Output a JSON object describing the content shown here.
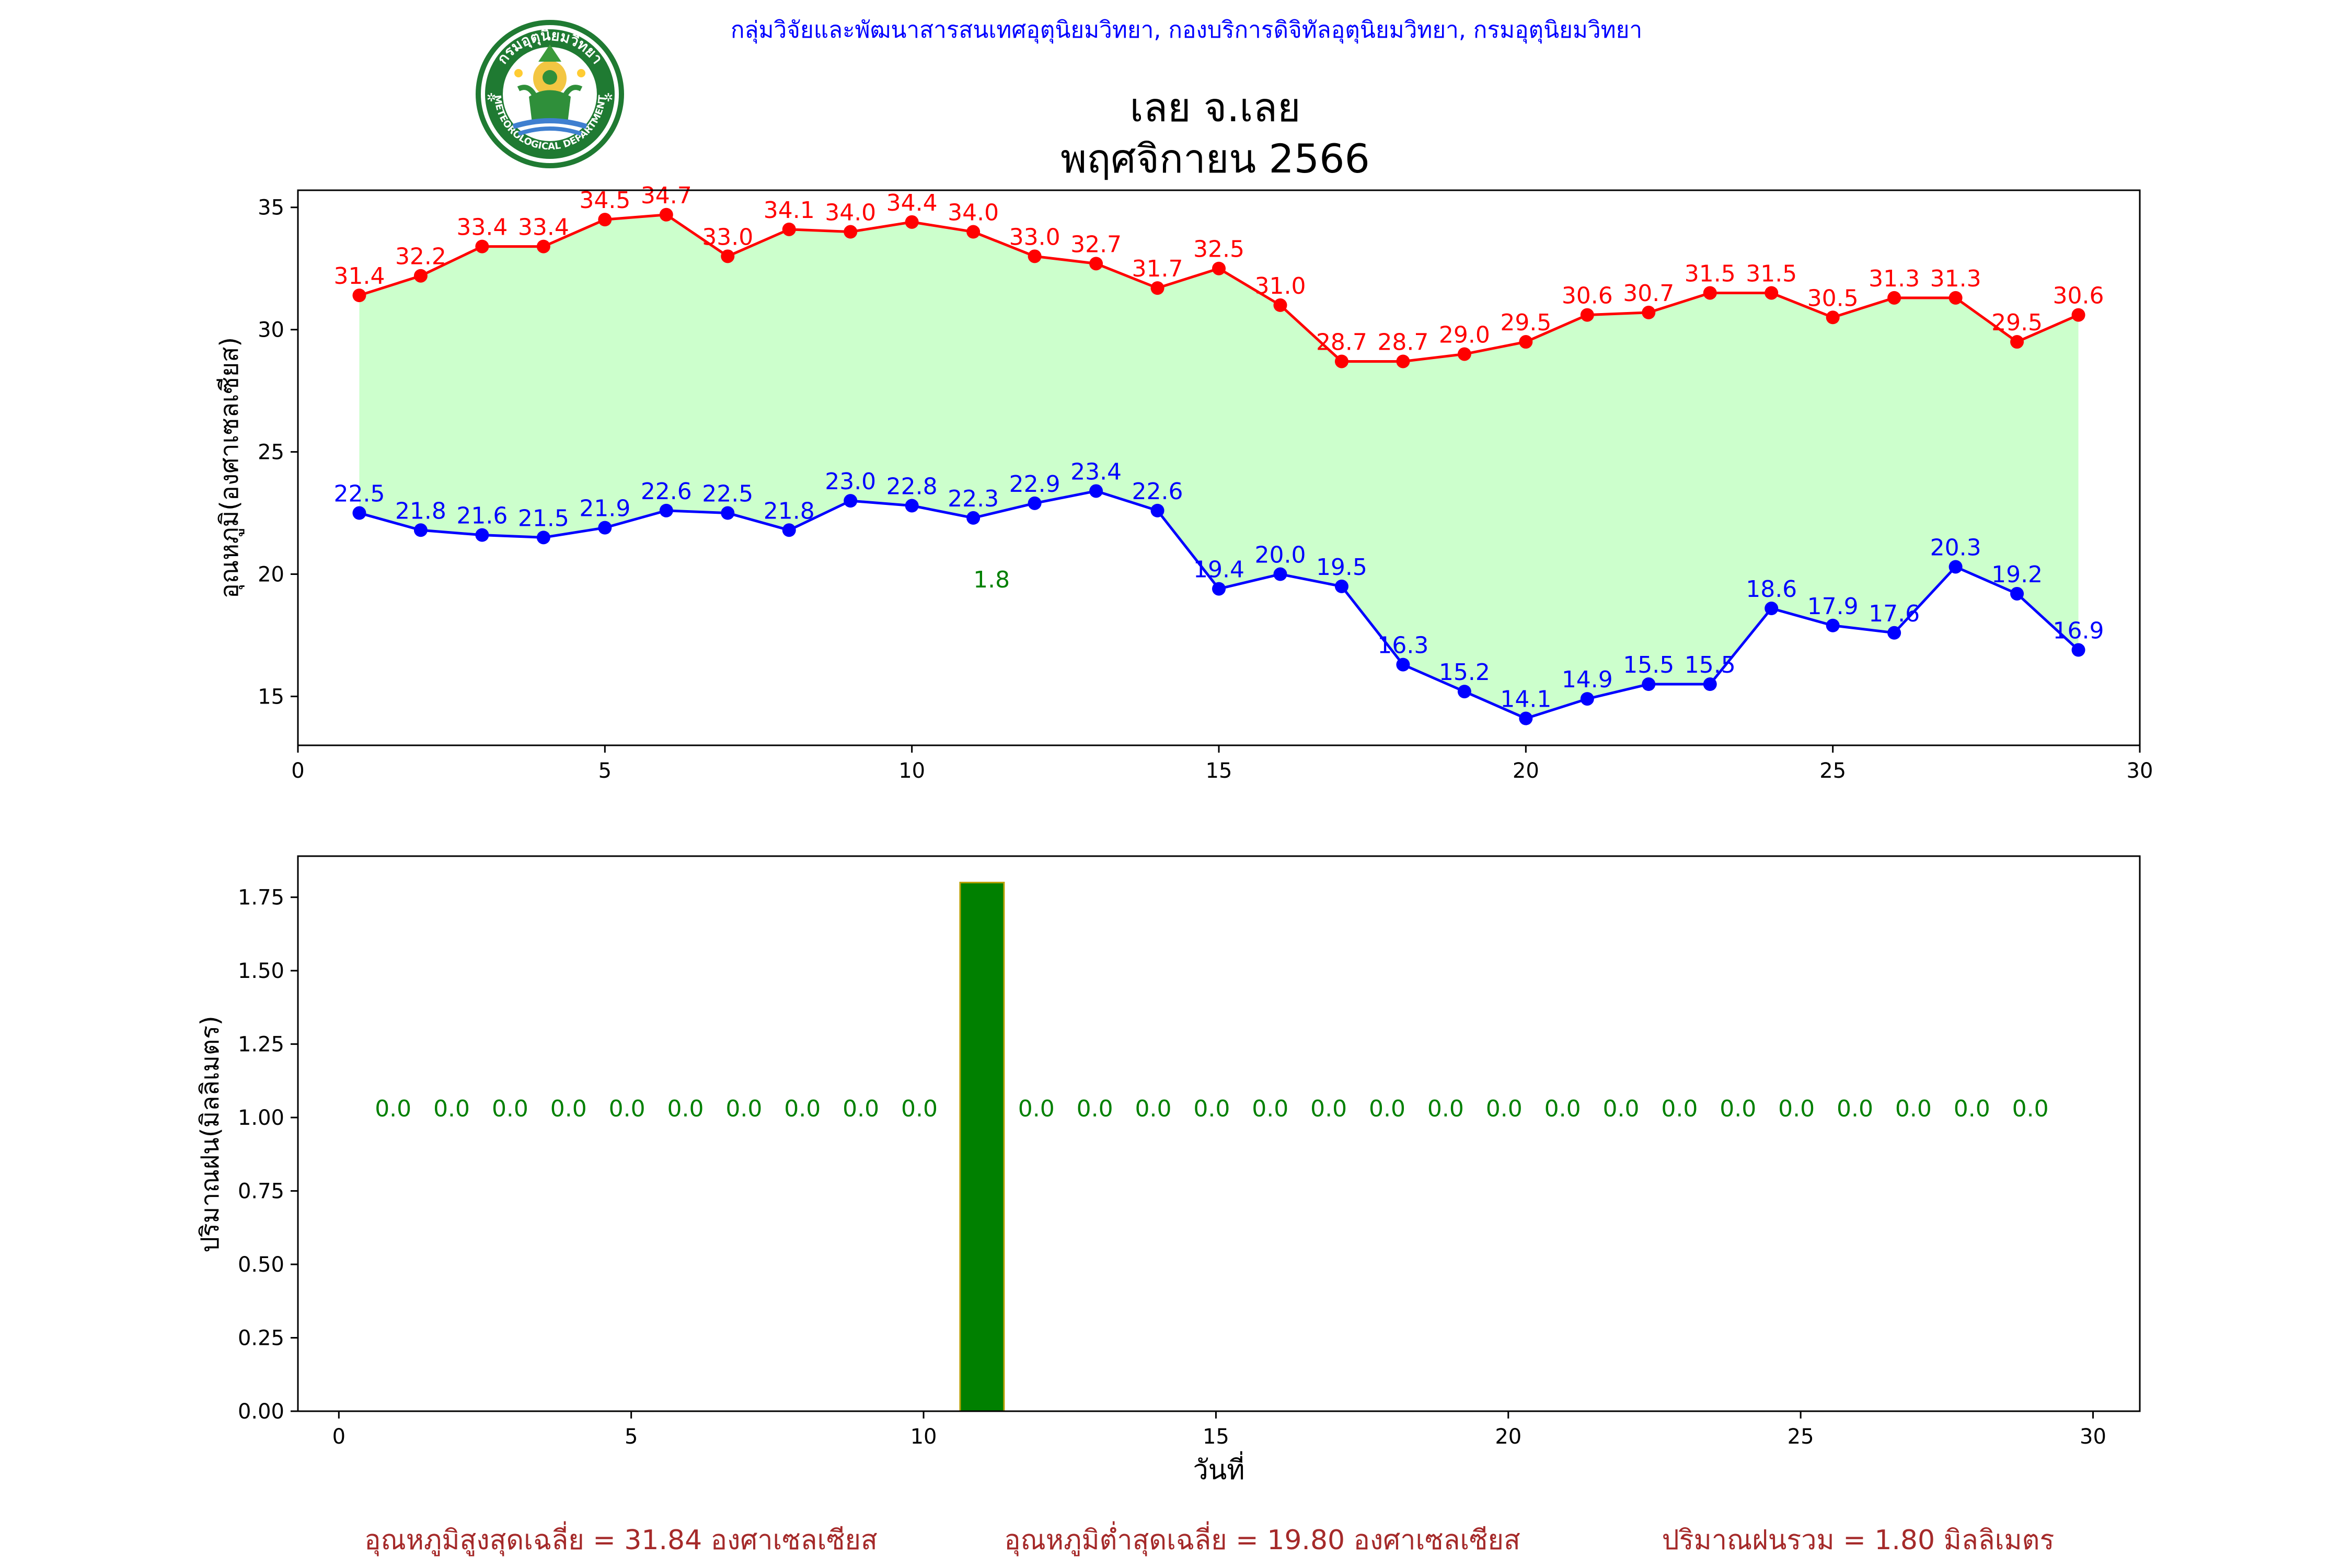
{
  "header": {
    "organization": "กลุ่มวิจัยและพัฒนาสารสนเทศอุตุนิยมวิทยา, กองบริการดิจิทัลอุตุนิยมวิทยา, กรมอุตุนิยมวิทยา",
    "station": "เลย จ.เลย",
    "period": "พฤศจิกายน 2566",
    "logo_text_top": "กรมอุตุนิยมวิทยา",
    "logo_text_bottom": "METEOROLOGICAL DEPARTMENT"
  },
  "summary": {
    "avg_max": "อุณหภูมิสูงสุดเฉลี่ย = 31.84 องศาเซลเซียส",
    "avg_min": "อุณหภูมิต่ำสุดเฉลี่ย = 19.80 องศาเซลเซียส",
    "total_rain": "ปริมาณฝนรวม = 1.80 มิลลิเมตร"
  },
  "colors": {
    "max_line": "#ff0000",
    "min_line": "#0000ff",
    "fill": "#ccffcc",
    "rain_bar": "#008000",
    "rain_edge": "#b8a000",
    "rain_label": "#008000",
    "org_text": "#0000ff",
    "summary_text": "#a52a2a"
  },
  "chart_data": [
    {
      "type": "line",
      "ylabel": "อุณหภูมิ(องศาเซลเซียส)",
      "xlim": [
        0,
        30
      ],
      "ylim": [
        13,
        35.7
      ],
      "xticks": [
        0,
        5,
        10,
        15,
        20,
        25,
        30
      ],
      "yticks": [
        15,
        20,
        25,
        30,
        35
      ],
      "x": [
        1,
        2,
        3,
        4,
        5,
        6,
        7,
        8,
        9,
        10,
        11,
        12,
        13,
        14,
        15,
        16,
        17,
        18,
        19,
        20,
        21,
        22,
        23,
        24,
        25,
        26,
        27,
        28,
        29
      ],
      "series": [
        {
          "key": "max",
          "values": [
            31.4,
            32.2,
            33.4,
            33.4,
            34.5,
            34.7,
            33.0,
            34.1,
            34.0,
            34.4,
            34.0,
            33.0,
            32.7,
            31.7,
            32.5,
            31.0,
            28.7,
            28.7,
            29.0,
            29.5,
            30.6,
            30.7,
            31.5,
            31.5,
            30.5,
            31.3,
            31.3,
            29.5,
            30.6
          ]
        },
        {
          "key": "min",
          "values": [
            22.5,
            21.8,
            21.6,
            21.5,
            21.9,
            22.6,
            22.5,
            21.8,
            23.0,
            22.8,
            22.3,
            22.9,
            23.4,
            22.6,
            19.4,
            20.0,
            19.5,
            16.3,
            15.2,
            14.1,
            14.9,
            15.5,
            15.5,
            18.6,
            17.9,
            17.6,
            20.3,
            19.2,
            16.9
          ]
        }
      ],
      "annotations": [
        {
          "x": 11,
          "y": 19.8,
          "text": "1.8"
        }
      ]
    },
    {
      "type": "bar",
      "xlabel": "วันที่",
      "ylabel": "ปริมาณฝน(มิลลิเมตร)",
      "xlim": [
        -0.7,
        30.8
      ],
      "ylim": [
        0,
        1.89
      ],
      "xticks": [
        0,
        5,
        10,
        15,
        20,
        25,
        30
      ],
      "yticks": [
        "0.00",
        "0.25",
        "0.50",
        "0.75",
        "1.00",
        "1.25",
        "1.50",
        "1.75"
      ],
      "x": [
        1,
        2,
        3,
        4,
        5,
        6,
        7,
        8,
        9,
        10,
        11,
        12,
        13,
        14,
        15,
        16,
        17,
        18,
        19,
        20,
        21,
        22,
        23,
        24,
        25,
        26,
        27,
        28,
        29
      ],
      "values": [
        0.0,
        0.0,
        0.0,
        0.0,
        0.0,
        0.0,
        0.0,
        0.0,
        0.0,
        0.0,
        1.8,
        0.0,
        0.0,
        0.0,
        0.0,
        0.0,
        0.0,
        0.0,
        0.0,
        0.0,
        0.0,
        0.0,
        0.0,
        0.0,
        0.0,
        0.0,
        0.0,
        0.0,
        0.0
      ],
      "labels": [
        "0.0",
        "0.0",
        "0.0",
        "0.0",
        "0.0",
        "0.0",
        "0.0",
        "0.0",
        "0.0",
        "0.0",
        "",
        "0.0",
        "0.0",
        "0.0",
        "0.0",
        "0.0",
        "0.0",
        "0.0",
        "0.0",
        "0.0",
        "0.0",
        "0.0",
        "0.0",
        "0.0",
        "0.0",
        "0.0",
        "0.0",
        "0.0",
        "0.0"
      ],
      "label_y": 1.0
    }
  ]
}
